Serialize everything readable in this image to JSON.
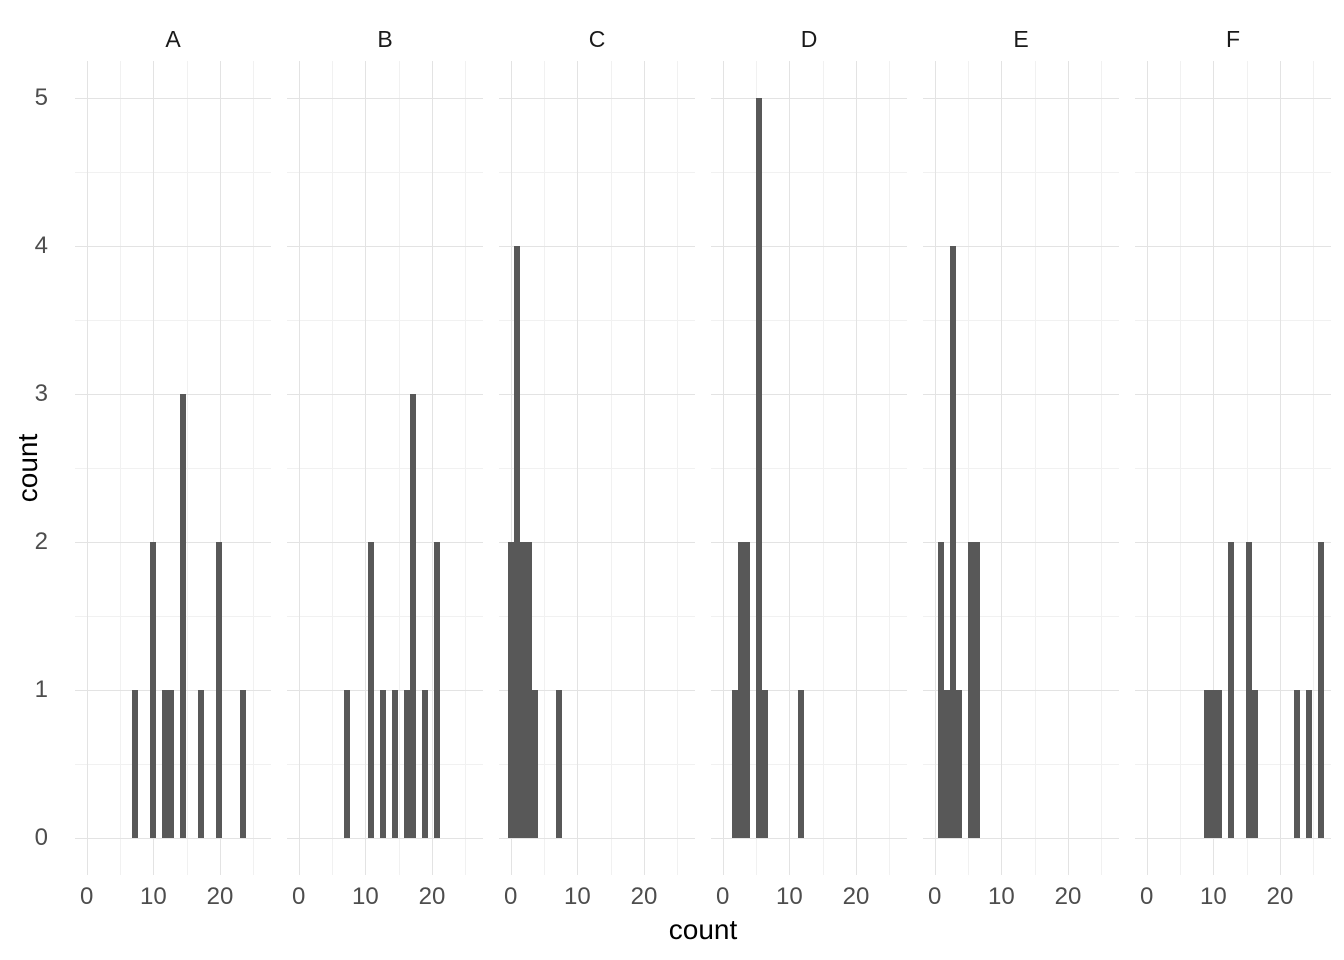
{
  "chart_data": {
    "type": "bar",
    "subtype": "faceted-histogram",
    "title": "",
    "xlabel": "count",
    "ylabel": "count",
    "legend_position": "none",
    "grid": "on",
    "binwidth": 0.9,
    "x_domain": [
      -1.75,
      27.65
    ],
    "y_domain": [
      -0.25,
      5.25
    ],
    "x_major_ticks": [
      0,
      10,
      20
    ],
    "x_minor_gridlines": [
      5,
      15,
      25
    ],
    "y_major_ticks": [
      0,
      1,
      2,
      3,
      4,
      5
    ],
    "y_minor_gridlines": [
      0.5,
      1.5,
      2.5,
      3.5,
      4.5
    ],
    "facets": [
      {
        "label": "A",
        "bars": [
          {
            "x": 7.2,
            "count": 1
          },
          {
            "x": 9.9,
            "count": 2
          },
          {
            "x": 11.7,
            "count": 1
          },
          {
            "x": 12.6,
            "count": 1
          },
          {
            "x": 14.4,
            "count": 3
          },
          {
            "x": 17.1,
            "count": 1
          },
          {
            "x": 19.8,
            "count": 2
          },
          {
            "x": 23.4,
            "count": 1
          }
        ]
      },
      {
        "label": "B",
        "bars": [
          {
            "x": 7.2,
            "count": 1
          },
          {
            "x": 10.8,
            "count": 2
          },
          {
            "x": 12.6,
            "count": 1
          },
          {
            "x": 14.4,
            "count": 1
          },
          {
            "x": 16.2,
            "count": 1
          },
          {
            "x": 17.1,
            "count": 3
          },
          {
            "x": 18.9,
            "count": 1
          },
          {
            "x": 20.7,
            "count": 2
          }
        ]
      },
      {
        "label": "C",
        "bars": [
          {
            "x": 0.0,
            "count": 2
          },
          {
            "x": 0.9,
            "count": 4
          },
          {
            "x": 1.8,
            "count": 2
          },
          {
            "x": 2.7,
            "count": 2
          },
          {
            "x": 3.6,
            "count": 1
          },
          {
            "x": 7.2,
            "count": 1
          }
        ]
      },
      {
        "label": "D",
        "bars": [
          {
            "x": 1.8,
            "count": 1
          },
          {
            "x": 2.7,
            "count": 2
          },
          {
            "x": 3.6,
            "count": 2
          },
          {
            "x": 5.4,
            "count": 5
          },
          {
            "x": 6.3,
            "count": 1
          },
          {
            "x": 11.7,
            "count": 1
          }
        ]
      },
      {
        "label": "E",
        "bars": [
          {
            "x": 0.9,
            "count": 2
          },
          {
            "x": 1.8,
            "count": 1
          },
          {
            "x": 2.7,
            "count": 4
          },
          {
            "x": 3.6,
            "count": 1
          },
          {
            "x": 5.4,
            "count": 2
          },
          {
            "x": 6.3,
            "count": 2
          }
        ]
      },
      {
        "label": "F",
        "bars": [
          {
            "x": 9.0,
            "count": 1
          },
          {
            "x": 9.9,
            "count": 1
          },
          {
            "x": 10.8,
            "count": 1
          },
          {
            "x": 12.6,
            "count": 2
          },
          {
            "x": 15.3,
            "count": 2
          },
          {
            "x": 16.2,
            "count": 1
          },
          {
            "x": 22.5,
            "count": 1
          },
          {
            "x": 24.3,
            "count": 1
          },
          {
            "x": 26.1,
            "count": 2
          }
        ]
      }
    ],
    "colors": {
      "bar": "#585858",
      "grid_major": "#E3E3E3",
      "grid_minor": "#F1F1F1",
      "tick_label": "#4D4D4D",
      "strip_label": "#1A1A1A",
      "axis_title": "#000000",
      "background": "#FFFFFF"
    }
  }
}
